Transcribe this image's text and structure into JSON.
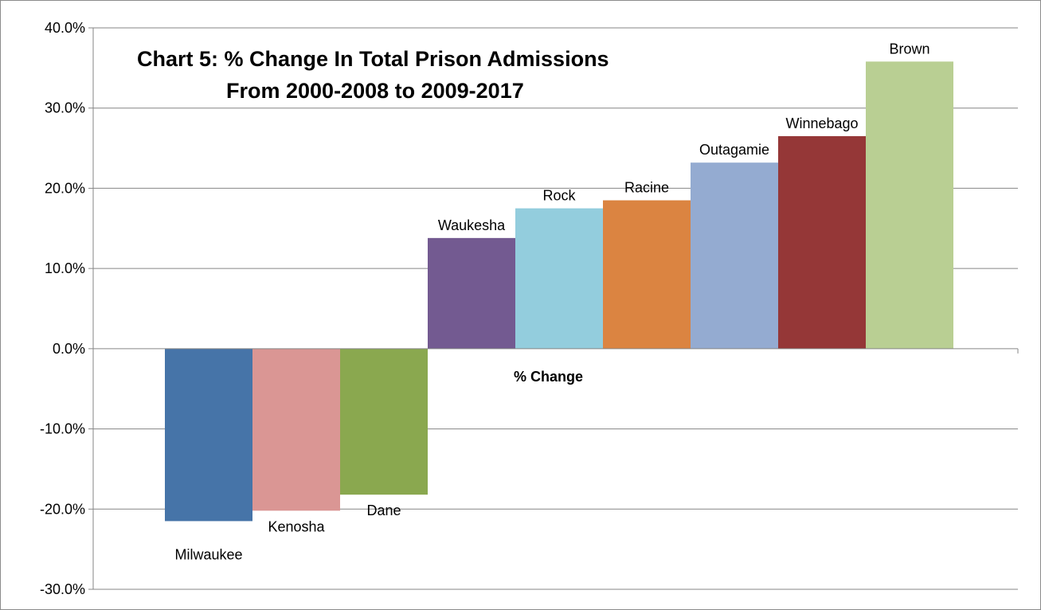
{
  "chart_data": {
    "type": "bar",
    "title": [
      "Chart 5: % Change In Total Prison Admissions",
      "From 2000-2008 to 2009-2017"
    ],
    "xlabel": "% Change",
    "ylabel": "",
    "ylim": [
      -30,
      40
    ],
    "yticks": [
      40,
      30,
      20,
      10,
      0,
      -10,
      -20,
      -30
    ],
    "ytick_labels": [
      "40.0%",
      "30.0%",
      "20.0%",
      "10.0%",
      "0.0%",
      "-10.0%",
      "-20.0%",
      "-30.0%"
    ],
    "grid": true,
    "legend": "none",
    "categories": [
      "Milwaukee",
      "Kenosha",
      "Dane",
      "Waukesha",
      "Rock",
      "Racine",
      "Outagamie",
      "Winnebago",
      "Brown"
    ],
    "values": [
      -21.5,
      -20.2,
      -18.2,
      13.8,
      17.5,
      18.5,
      23.2,
      26.5,
      35.8
    ],
    "colors": [
      "#4674a8",
      "#da9694",
      "#8aa84f",
      "#735a91",
      "#93cddd",
      "#db8441",
      "#94abd1",
      "#953737",
      "#b9cf93"
    ]
  }
}
